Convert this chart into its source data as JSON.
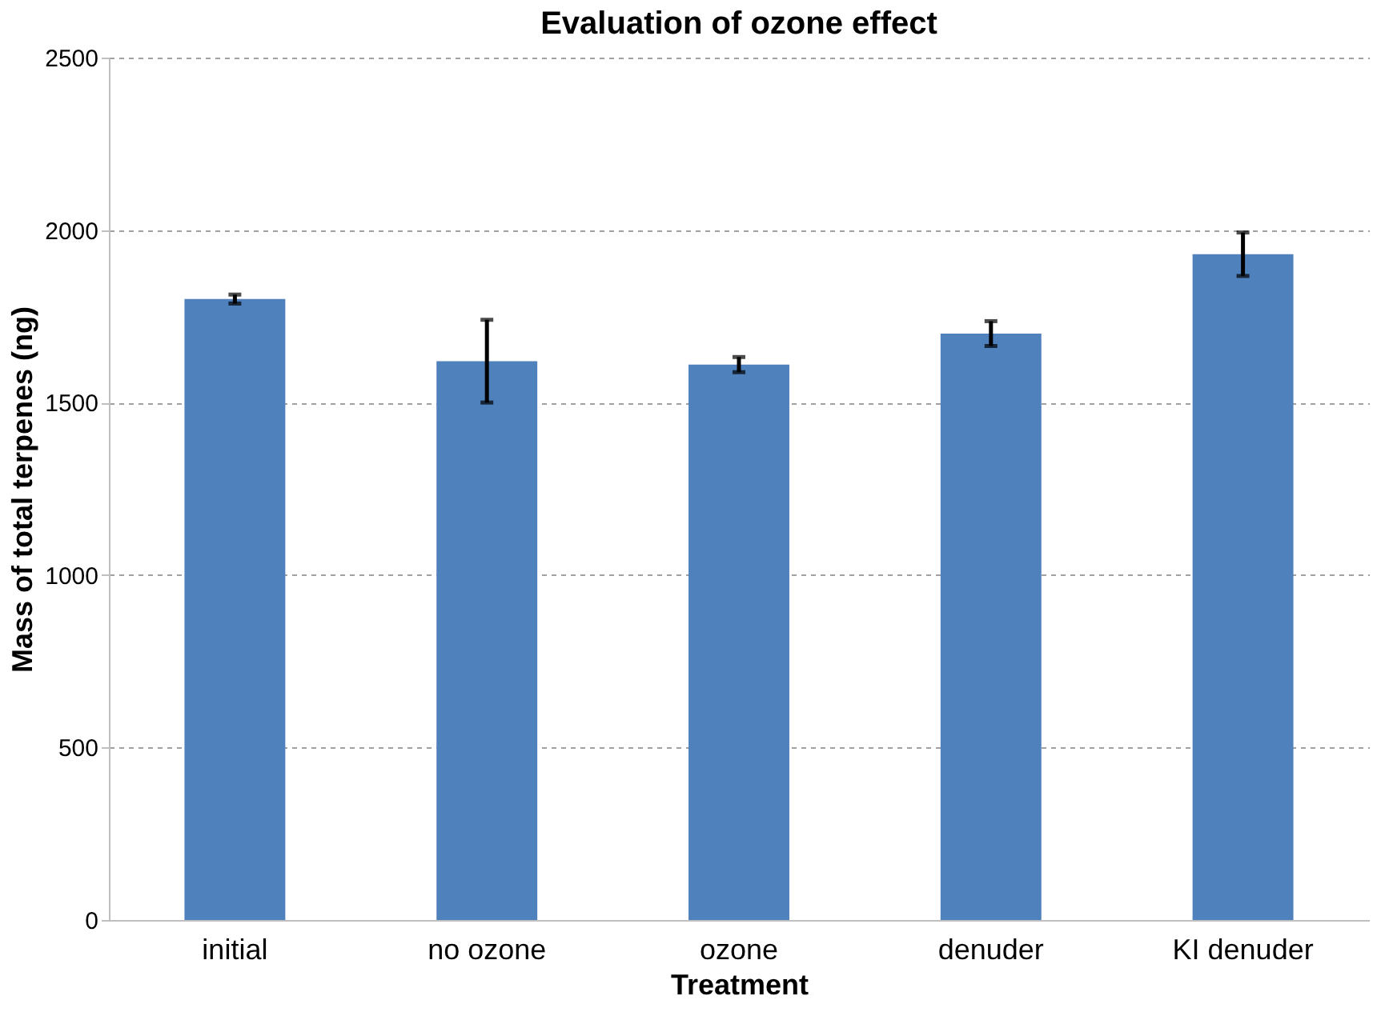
{
  "chart_data": {
    "type": "bar",
    "title": "Evaluation of ozone effect",
    "xlabel": "Treatment",
    "ylabel": "Mass of total terpenes (ng)",
    "categories": [
      "initial",
      "no ozone",
      "ozone",
      "denuder",
      "KI denuder"
    ],
    "values": [
      1800,
      1620,
      1610,
      1700,
      1930
    ],
    "errors": [
      13,
      120,
      22,
      36,
      63
    ],
    "color": "#4f81bd",
    "ylim": [
      0,
      2500
    ],
    "yticks": [
      0,
      500,
      1000,
      1500,
      2000,
      2500
    ],
    "grid": "y"
  }
}
